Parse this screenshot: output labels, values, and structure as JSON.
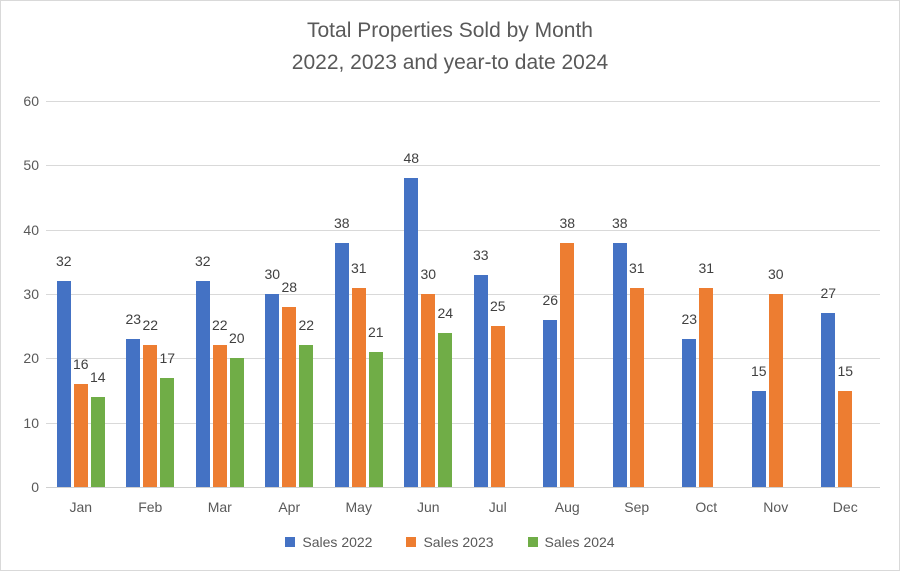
{
  "title": {
    "line1": "Total Properties Sold by Month",
    "line2": "2022, 2023 and year-to date 2024"
  },
  "chart_data": {
    "type": "bar",
    "title": "Total Properties Sold by Month 2022, 2023 and year-to date 2024",
    "categories": [
      "Jan",
      "Feb",
      "Mar",
      "Apr",
      "May",
      "Jun",
      "Jul",
      "Aug",
      "Sep",
      "Oct",
      "Nov",
      "Dec"
    ],
    "series": [
      {
        "name": "Sales 2022",
        "color": "#4472C4",
        "values": [
          32,
          23,
          32,
          30,
          38,
          48,
          33,
          26,
          38,
          23,
          15,
          27
        ]
      },
      {
        "name": "Sales 2023",
        "color": "#ED7D31",
        "values": [
          16,
          22,
          22,
          28,
          31,
          30,
          25,
          38,
          31,
          31,
          30,
          15
        ]
      },
      {
        "name": "Sales 2024",
        "color": "#70AD47",
        "values": [
          14,
          17,
          20,
          22,
          21,
          24,
          null,
          null,
          null,
          null,
          null,
          null
        ]
      }
    ],
    "xlabel": "",
    "ylabel": "",
    "ylim": [
      0,
      60
    ],
    "yticks": [
      0,
      10,
      20,
      30,
      40,
      50,
      60
    ],
    "grid": true,
    "data_labels": true,
    "legend_position": "bottom"
  },
  "colors": {
    "series_blue": "#4472C4",
    "series_orange": "#ED7D31",
    "series_green": "#70AD47",
    "gridline": "#D9D9D9",
    "axis_text": "#595959",
    "data_label_text": "#404040",
    "background": "#FFFFFF"
  }
}
